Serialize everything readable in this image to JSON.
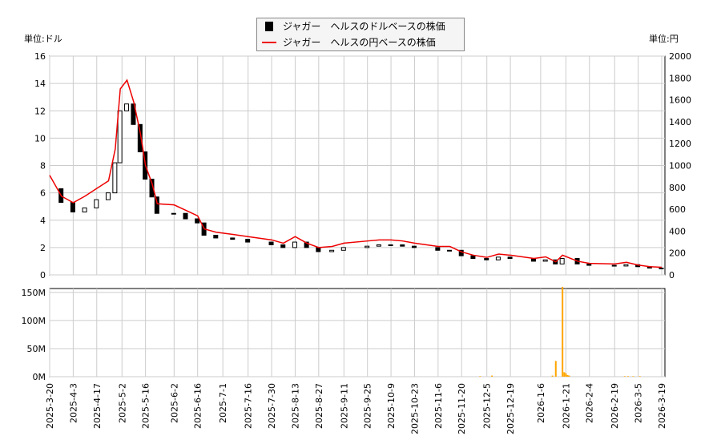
{
  "chart_data": {
    "type": "candlestick+line+bar",
    "left_unit_label": "単位:ドル",
    "right_unit_label": "単位:円",
    "legend": [
      "ジャガー　ヘルスのドルベースの株価",
      "ジャガー　ヘルスの円ベースの株価"
    ],
    "colors": {
      "usd": "#000000",
      "jpy": "#ee0000",
      "volume": "#ffa500",
      "grid": "#cccccc"
    },
    "ylim_usd": [
      0,
      16
    ],
    "ylim_jpy": [
      0,
      2000
    ],
    "yticks_usd": [
      "0",
      "2",
      "4",
      "6",
      "8",
      "10",
      "12",
      "14",
      "16"
    ],
    "yticks_jpy": [
      "0",
      "200",
      "400",
      "600",
      "800",
      "1000",
      "1200",
      "1400",
      "1600",
      "1800",
      "2000"
    ],
    "volume_ticks": [
      "0M",
      "50M",
      "100M",
      "150M"
    ],
    "xticks": [
      "2025-3-20",
      "2025-4-3",
      "2025-4-17",
      "2025-5-2",
      "2025-5-16",
      "2025-6-2",
      "2025-6-16",
      "2025-7-1",
      "2025-7-16",
      "2025-7-30",
      "2025-8-13",
      "2025-8-27",
      "2025-9-11",
      "2025-9-25",
      "2025-10-9",
      "2025-10-23",
      "2025-11-6",
      "2025-11-20",
      "2025-12-5",
      "2025-12-19",
      "2026-1-6",
      "2026-1-21",
      "2026-2-4",
      "2026-2-19",
      "2026-3-5",
      "2026-3-19"
    ],
    "dates": [
      "2025-3-20",
      "2025-3-27",
      "2025-4-3",
      "2025-4-10",
      "2025-4-17",
      "2025-4-24",
      "2025-4-28",
      "2025-5-1",
      "2025-5-5",
      "2025-5-9",
      "2025-5-13",
      "2025-5-16",
      "2025-5-20",
      "2025-5-23",
      "2025-6-2",
      "2025-6-9",
      "2025-6-16",
      "2025-6-20",
      "2025-6-27",
      "2025-7-7",
      "2025-7-16",
      "2025-7-30",
      "2025-8-6",
      "2025-8-13",
      "2025-8-20",
      "2025-8-27",
      "2025-9-4",
      "2025-9-11",
      "2025-9-25",
      "2025-10-2",
      "2025-10-9",
      "2025-10-16",
      "2025-10-23",
      "2025-11-6",
      "2025-11-13",
      "2025-11-20",
      "2025-11-27",
      "2025-12-5",
      "2025-12-12",
      "2025-12-19",
      "2026-1-2",
      "2026-1-9",
      "2026-1-15",
      "2026-1-19",
      "2026-1-28",
      "2026-2-4",
      "2026-2-19",
      "2026-2-26",
      "2026-3-5",
      "2026-3-12",
      "2026-3-19"
    ],
    "usd_close": [
      6.3,
      5.3,
      4.6,
      4.9,
      5.5,
      6.0,
      8.2,
      12.0,
      12.5,
      11.0,
      9.0,
      7.0,
      5.7,
      4.5,
      4.5,
      4.1,
      3.8,
      2.9,
      2.7,
      2.6,
      2.4,
      2.2,
      2.0,
      2.4,
      2.0,
      1.7,
      1.8,
      2.0,
      2.1,
      2.2,
      2.2,
      2.1,
      2.0,
      1.8,
      1.8,
      1.4,
      1.2,
      1.1,
      1.3,
      1.2,
      1.0,
      1.1,
      0.8,
      1.2,
      0.8,
      0.7,
      0.65,
      0.75,
      0.6,
      0.5,
      0.45
    ],
    "jpy_close": [
      910,
      720,
      660,
      720,
      790,
      860,
      1150,
      1700,
      1780,
      1580,
      1290,
      1000,
      830,
      650,
      640,
      590,
      540,
      420,
      390,
      370,
      350,
      320,
      290,
      350,
      290,
      250,
      260,
      290,
      310,
      320,
      320,
      310,
      290,
      260,
      260,
      210,
      180,
      160,
      190,
      180,
      150,
      165,
      120,
      180,
      125,
      105,
      100,
      115,
      90,
      75,
      70
    ],
    "volume": {
      "dates": [
        "2025-12-1",
        "2025-12-8",
        "2026-1-13",
        "2026-1-15",
        "2026-1-19",
        "2026-1-20",
        "2026-1-21",
        "2026-1-22",
        "2026-1-23",
        "2026-2-25",
        "2026-2-27",
        "2026-3-2",
        "2026-3-6"
      ],
      "values_M": [
        1,
        2,
        2,
        28,
        160,
        8,
        6,
        3,
        2,
        1,
        1,
        1,
        1
      ]
    }
  }
}
